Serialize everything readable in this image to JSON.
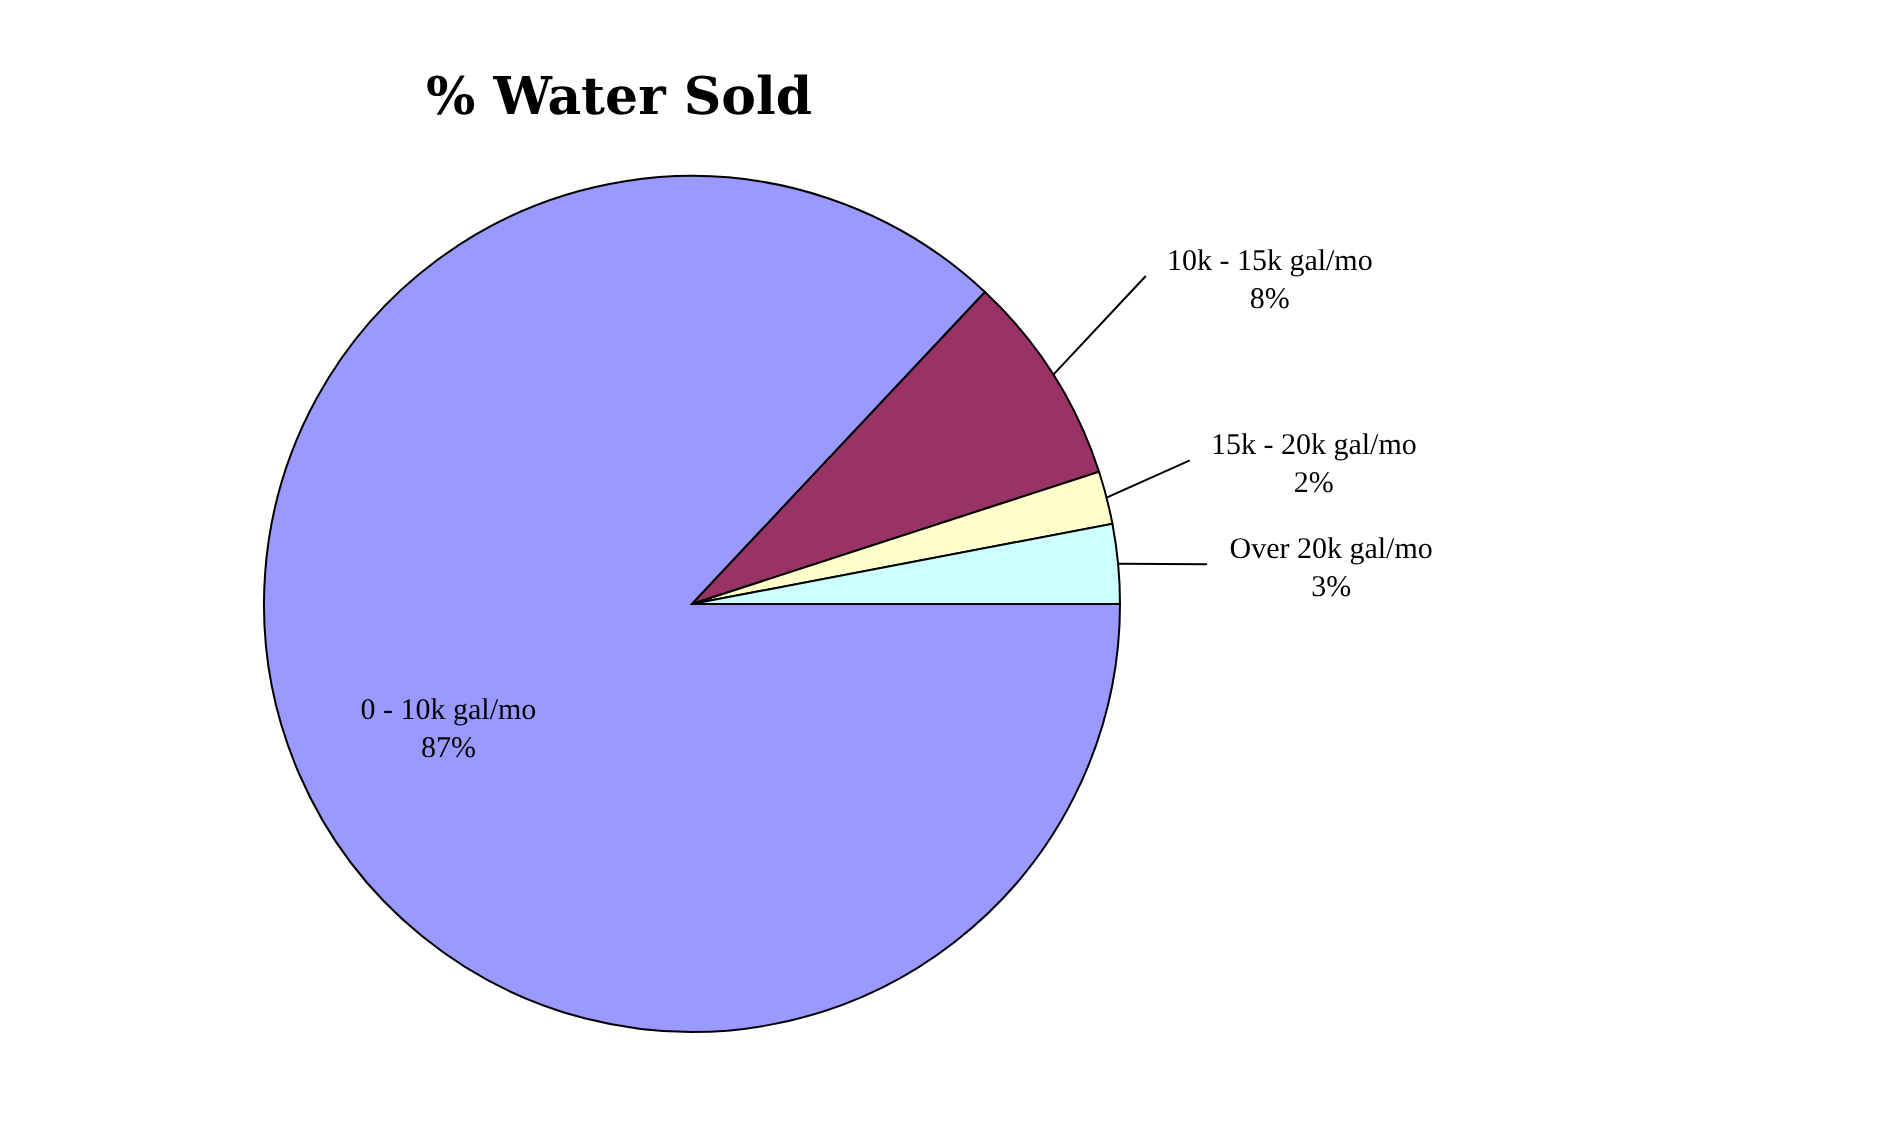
{
  "chart_data": {
    "type": "pie",
    "title": "% Water Sold",
    "categories": [
      "0 - 10k gal/mo",
      "10k - 15k gal/mo",
      "15k - 20k gal/mo",
      "Over 20k gal/mo"
    ],
    "values": [
      87,
      8,
      2,
      3
    ],
    "value_labels": [
      "87%",
      "8%",
      "2%",
      "3%"
    ],
    "colors": [
      "#9999ff",
      "#993366",
      "#ffffcc",
      "#ccffff"
    ],
    "legend": false
  }
}
